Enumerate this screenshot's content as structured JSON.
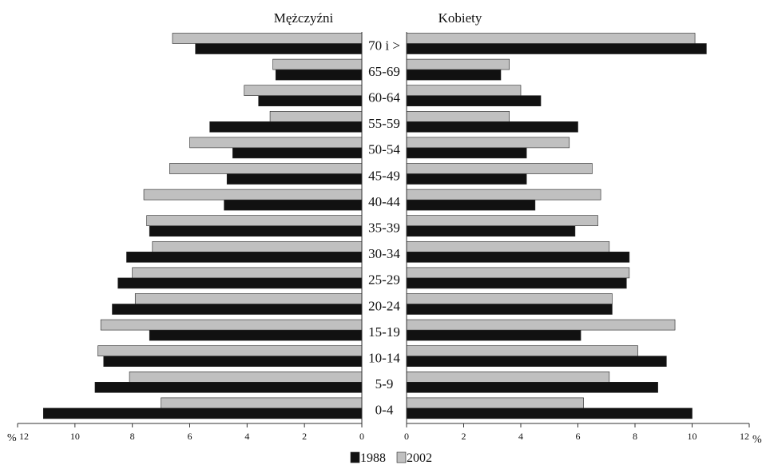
{
  "chart_data": {
    "type": "bar",
    "orientation": "horizontal",
    "layout": "population-pyramid",
    "title": "",
    "left_panel_title": "Mężczyźni",
    "right_panel_title": "Kobiety",
    "categories": [
      "0-4",
      "5-9",
      "10-14",
      "15-19",
      "20-24",
      "25-29",
      "30-34",
      "35-39",
      "40-44",
      "45-49",
      "50-54",
      "55-59",
      "60-64",
      "65-69",
      "70 i >"
    ],
    "series": [
      {
        "name": "1988",
        "color": "#111111",
        "men": [
          11.1,
          9.3,
          9.0,
          7.4,
          8.7,
          8.5,
          8.2,
          7.4,
          4.8,
          4.7,
          4.5,
          5.3,
          3.6,
          3.0,
          5.8
        ],
        "women": [
          10.0,
          8.8,
          9.1,
          6.1,
          7.2,
          7.7,
          7.8,
          5.9,
          4.5,
          4.2,
          4.2,
          6.0,
          4.7,
          3.3,
          10.5
        ]
      },
      {
        "name": "2002",
        "color": "#c0c0c0",
        "men": [
          7.0,
          8.1,
          9.2,
          9.1,
          7.9,
          8.0,
          7.3,
          7.5,
          7.6,
          6.7,
          6.0,
          3.2,
          4.1,
          3.1,
          6.6
        ],
        "women": [
          6.2,
          7.1,
          8.1,
          9.4,
          7.2,
          7.8,
          7.1,
          6.7,
          6.8,
          6.5,
          5.7,
          3.6,
          4.0,
          3.6,
          10.1
        ]
      }
    ],
    "left_axis": {
      "ticks": [
        0,
        2,
        4,
        6,
        8,
        10,
        12
      ],
      "labels": [
        "0",
        "2",
        "4",
        "6",
        "8",
        "10",
        "12"
      ],
      "max": 12,
      "unit_label": "%"
    },
    "right_axis": {
      "ticks": [
        0,
        2,
        4,
        6,
        8,
        10,
        12
      ],
      "labels": [
        "0",
        "2",
        "4",
        "6",
        "8",
        "10",
        "12"
      ],
      "max": 12,
      "unit_label": "%"
    },
    "legend": {
      "position": "bottom",
      "entries": [
        "1988",
        "2002"
      ]
    },
    "grid": false
  }
}
